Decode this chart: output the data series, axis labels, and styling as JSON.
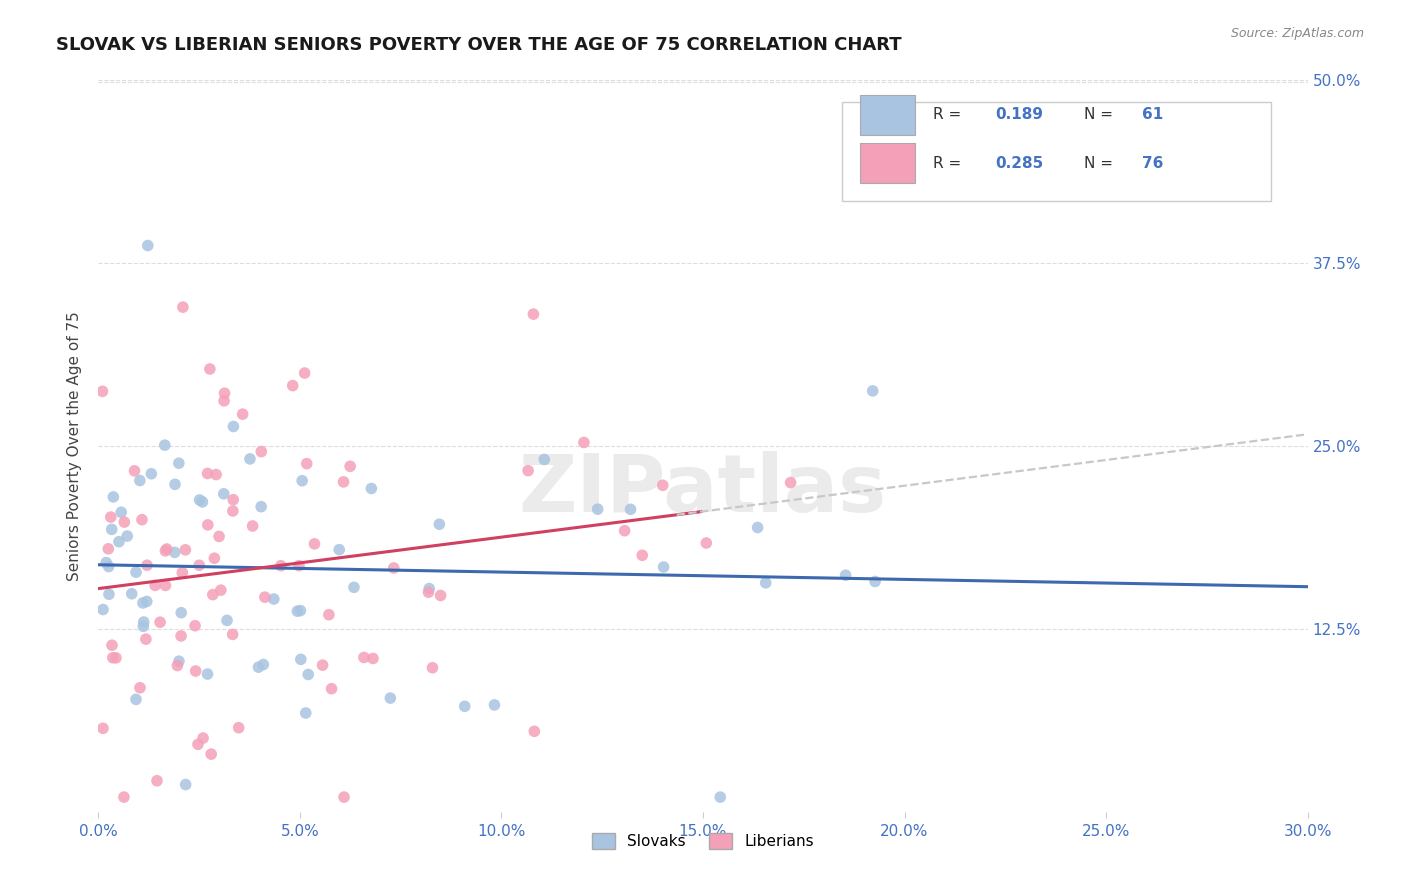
{
  "title": "SLOVAK VS LIBERIAN SENIORS POVERTY OVER THE AGE OF 75 CORRELATION CHART",
  "source": "Source: ZipAtlas.com",
  "ylabel": "Seniors Poverty Over the Age of 75",
  "xlim": [
    0.0,
    0.3
  ],
  "ylim": [
    0.0,
    0.5
  ],
  "x_ticks": [
    0.0,
    0.05,
    0.1,
    0.15,
    0.2,
    0.25,
    0.3
  ],
  "y_ticks": [
    0.125,
    0.25,
    0.375,
    0.5
  ],
  "slovak_R": 0.189,
  "slovak_N": 61,
  "liberian_R": 0.285,
  "liberian_N": 76,
  "slovak_color": "#a8c4e0",
  "liberian_color": "#f4a0b8",
  "slovak_line_color": "#3d6aaf",
  "liberian_line_color": "#d04060",
  "dashed_line_color": "#c8c8c8",
  "background_color": "#ffffff",
  "watermark": "ZIPatlas",
  "watermark_color": "#ebebeb",
  "title_fontsize": 13,
  "axis_fontsize": 11,
  "source_fontsize": 9
}
